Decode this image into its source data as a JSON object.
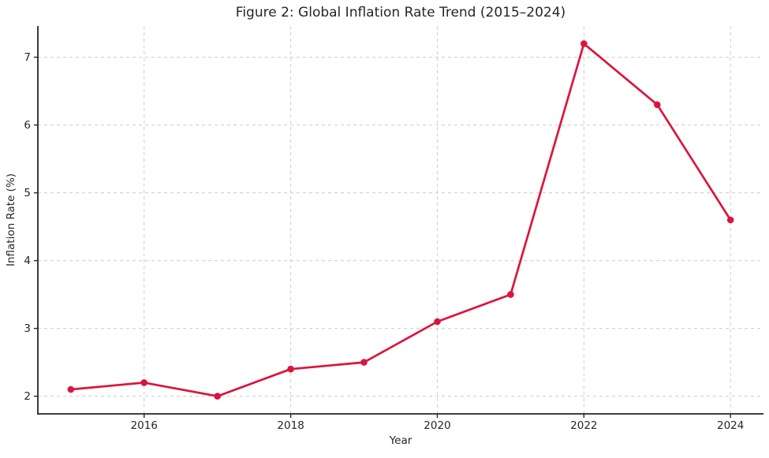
{
  "chart_data": {
    "type": "line",
    "title": "Figure 2: Global Inflation Rate Trend (2015–2024)",
    "xlabel": "Year",
    "ylabel": "Inflation Rate (%)",
    "x": [
      2015,
      2016,
      2017,
      2018,
      2019,
      2020,
      2021,
      2022,
      2023,
      2024
    ],
    "values": [
      2.1,
      2.2,
      2.0,
      2.4,
      2.5,
      3.1,
      3.5,
      7.2,
      6.3,
      4.6
    ],
    "xticks": [
      2016,
      2018,
      2020,
      2022,
      2024
    ],
    "yticks": [
      2,
      3,
      4,
      5,
      6,
      7
    ],
    "xlim": [
      2014.55,
      2024.45
    ],
    "ylim": [
      1.74,
      7.46
    ],
    "grid": "dashed-both-axes",
    "legend": "none",
    "marker": "circle",
    "line_color": "#DC143C"
  },
  "colors": {
    "line": "#DC143C",
    "grid": "#cccccc",
    "spine": "#262626",
    "tick": "#262626",
    "text": "#262626",
    "background": "#ffffff"
  }
}
